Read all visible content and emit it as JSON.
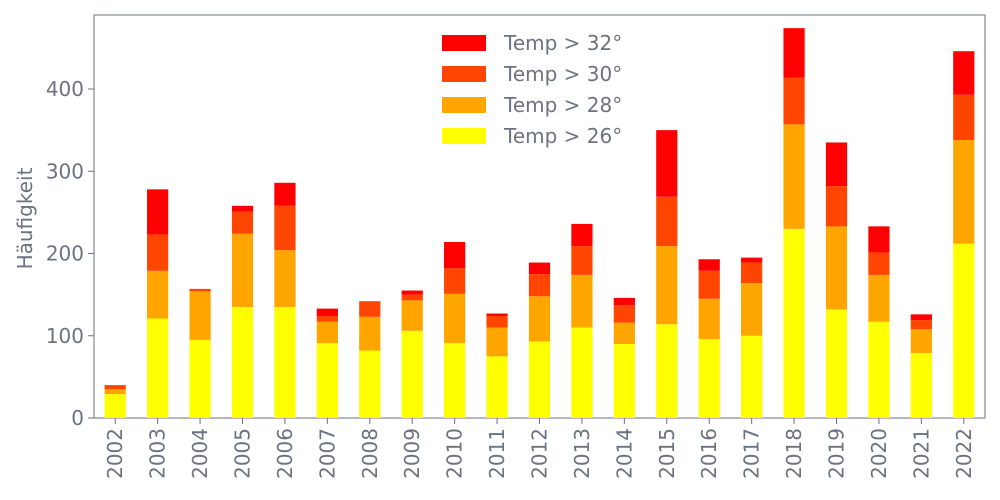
{
  "chart_data": {
    "type": "bar",
    "stacked": true,
    "ylabel": "Häufigkeit",
    "xlabel": "",
    "ylim": [
      0,
      490
    ],
    "yticks": [
      0,
      100,
      200,
      300,
      400
    ],
    "legend_position": "top-center",
    "categories": [
      "2002",
      "2003",
      "2004",
      "2005",
      "2006",
      "2007",
      "2008",
      "2009",
      "2010",
      "2011",
      "2012",
      "2013",
      "2014",
      "2015",
      "2016",
      "2017",
      "2018",
      "2019",
      "2020",
      "2021",
      "2022"
    ],
    "series": [
      {
        "name": "Temp > 26°",
        "color": "#ffff00",
        "values": [
          29,
          121,
          95,
          135,
          135,
          91,
          82,
          106,
          91,
          75,
          93,
          110,
          90,
          114,
          96,
          100,
          230,
          132,
          117,
          79,
          212
        ]
      },
      {
        "name": "Temp > 28°",
        "color": "#ffa500",
        "values": [
          6,
          58,
          59,
          89,
          69,
          26,
          41,
          37,
          60,
          35,
          55,
          64,
          26,
          95,
          49,
          64,
          127,
          101,
          57,
          29,
          126
        ]
      },
      {
        "name": "Temp > 30°",
        "color": "#ff4500",
        "values": [
          5,
          44,
          3,
          27,
          54,
          7,
          19,
          7,
          31,
          14,
          27,
          35,
          21,
          60,
          34,
          25,
          57,
          49,
          27,
          11,
          55
        ]
      },
      {
        "name": "Temp > 32°",
        "color": "#ff0000",
        "values": [
          0,
          55,
          0,
          7,
          28,
          9,
          0,
          5,
          32,
          3,
          14,
          27,
          9,
          81,
          14,
          6,
          60,
          53,
          32,
          7,
          53
        ]
      }
    ]
  }
}
